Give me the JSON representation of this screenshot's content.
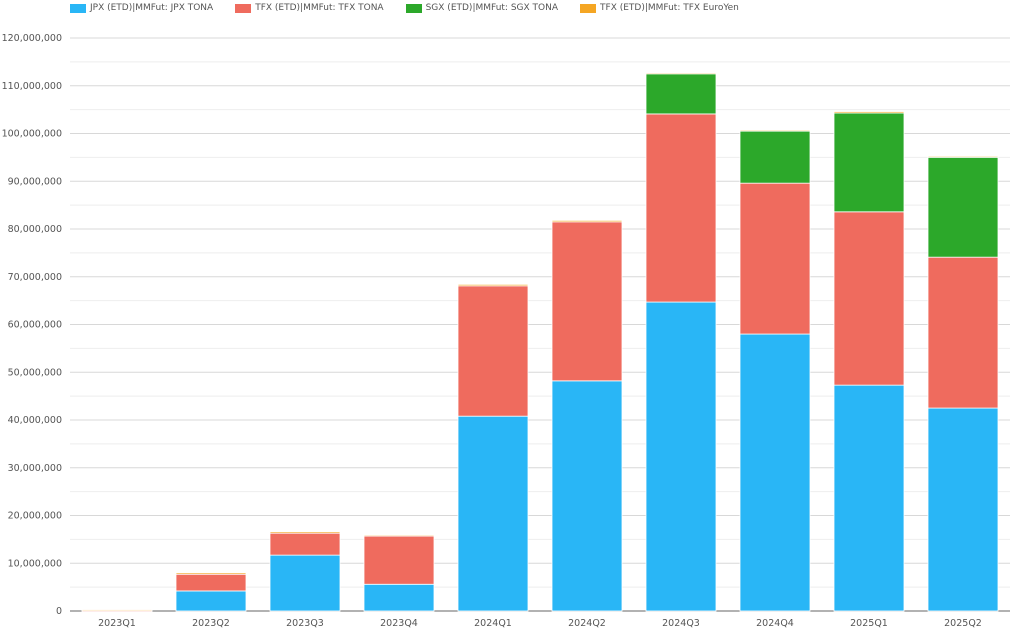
{
  "chart_data": {
    "type": "bar",
    "stacked": true,
    "title": "",
    "xlabel": "",
    "ylabel": "",
    "ylim": [
      0,
      120000000
    ],
    "yticks": [
      "0",
      "10,000,000",
      "20,000,000",
      "30,000,000",
      "40,000,000",
      "50,000,000",
      "60,000,000",
      "70,000,000",
      "80,000,000",
      "90,000,000",
      "100,000,000",
      "110,000,000",
      "120,000,000"
    ],
    "grid": true,
    "legend_position": "top-left",
    "categories": [
      "2023Q1",
      "2023Q2",
      "2023Q3",
      "2023Q4",
      "2024Q1",
      "2024Q2",
      "2024Q3",
      "2024Q4",
      "2025Q1",
      "2025Q2"
    ],
    "series": [
      {
        "name": "JPX (ETD)|MMFut: JPX TONA",
        "color": "#29b6f6",
        "values": [
          0,
          4200000,
          11700000,
          5600000,
          40800000,
          48200000,
          64700000,
          58000000,
          47300000,
          42500000
        ]
      },
      {
        "name": "TFX (ETD)|MMFut: TFX TONA",
        "color": "#ef6b5e",
        "values": [
          100000,
          3500000,
          4600000,
          10100000,
          27300000,
          33300000,
          39400000,
          31600000,
          36300000,
          31600000
        ]
      },
      {
        "name": "SGX (ETD)|MMFut: SGX TONA",
        "color": "#2ca82a",
        "values": [
          0,
          0,
          0,
          0,
          0,
          0,
          8400000,
          10900000,
          20700000,
          21000000
        ]
      },
      {
        "name": "TFX (ETD)|MMFut: TFX EuroYen",
        "color": "#f5a623",
        "values": [
          200000,
          300000,
          300000,
          200000,
          300000,
          300000,
          200000,
          200000,
          300000,
          100000
        ]
      }
    ]
  }
}
